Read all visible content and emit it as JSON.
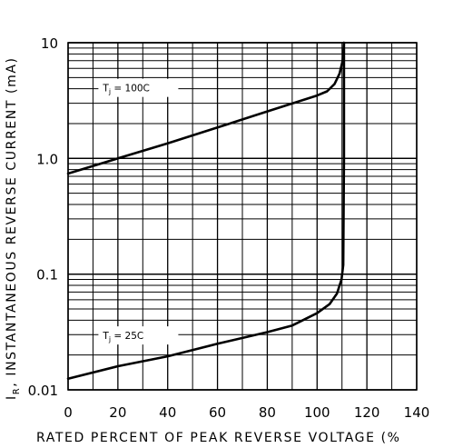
{
  "chart_data": {
    "type": "line",
    "title": "",
    "xlabel": "RATED PERCENT OF PEAK REVERSE VOLTAGE (%",
    "ylabel": "INSTANTANEOUS REVERSE CURRENT (mA)",
    "ylabel_symbol": "I",
    "ylabel_subscript": "R",
    "ylabel_suffix": ",",
    "xlim": [
      0,
      140
    ],
    "ylim": [
      0.01,
      10
    ],
    "yscale": "log",
    "grid": true,
    "x_ticks": [
      "0",
      "20",
      "40",
      "60",
      "80",
      "100",
      "120",
      "140"
    ],
    "x_tick_values": [
      0,
      20,
      40,
      60,
      80,
      100,
      120,
      140
    ],
    "y_ticks": [
      "0.01",
      "0.1",
      "1.0",
      "10"
    ],
    "y_tick_values": [
      0.01,
      0.1,
      1,
      10
    ],
    "series": [
      {
        "label_prefix": "T",
        "label_subscript": "j",
        "label_suffix": " = 100C",
        "label_x": 14,
        "label_y": 4.0,
        "points": [
          [
            0,
            0.74
          ],
          [
            20,
            1.0
          ],
          [
            40,
            1.35
          ],
          [
            60,
            1.85
          ],
          [
            80,
            2.55
          ],
          [
            100,
            3.5
          ],
          [
            104,
            3.8
          ],
          [
            107,
            4.4
          ],
          [
            109,
            5.4
          ],
          [
            110.3,
            7.0
          ],
          [
            110.8,
            10
          ]
        ]
      },
      {
        "label_prefix": "T",
        "label_subscript": "j",
        "label_suffix": " = 25C",
        "label_x": 14,
        "label_y": 0.029,
        "points": [
          [
            0,
            0.0125
          ],
          [
            20,
            0.016
          ],
          [
            40,
            0.0195
          ],
          [
            60,
            0.025
          ],
          [
            80,
            0.0315
          ],
          [
            90,
            0.036
          ],
          [
            100,
            0.046
          ],
          [
            105,
            0.055
          ],
          [
            108,
            0.068
          ],
          [
            109.8,
            0.09
          ],
          [
            110.5,
            0.12
          ],
          [
            110.8,
            1.0
          ],
          [
            110.8,
            10
          ]
        ]
      }
    ]
  }
}
